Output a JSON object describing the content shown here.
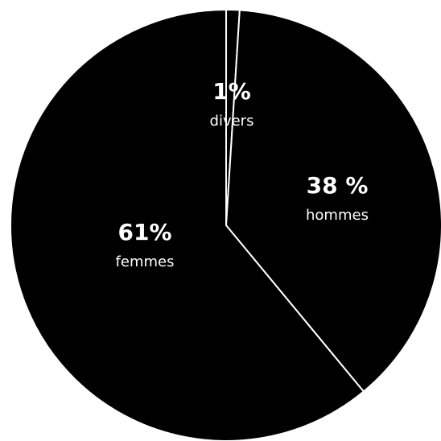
{
  "chart_data": {
    "type": "pie",
    "categories": [
      "divers",
      "hommes",
      "femmes"
    ],
    "values": [
      1,
      38,
      61
    ],
    "value_labels": [
      "1%",
      "38 %",
      "61%"
    ],
    "colors": [
      "#000000",
      "#000000",
      "#000000"
    ],
    "start_angle": 0,
    "direction": "clockwise"
  }
}
